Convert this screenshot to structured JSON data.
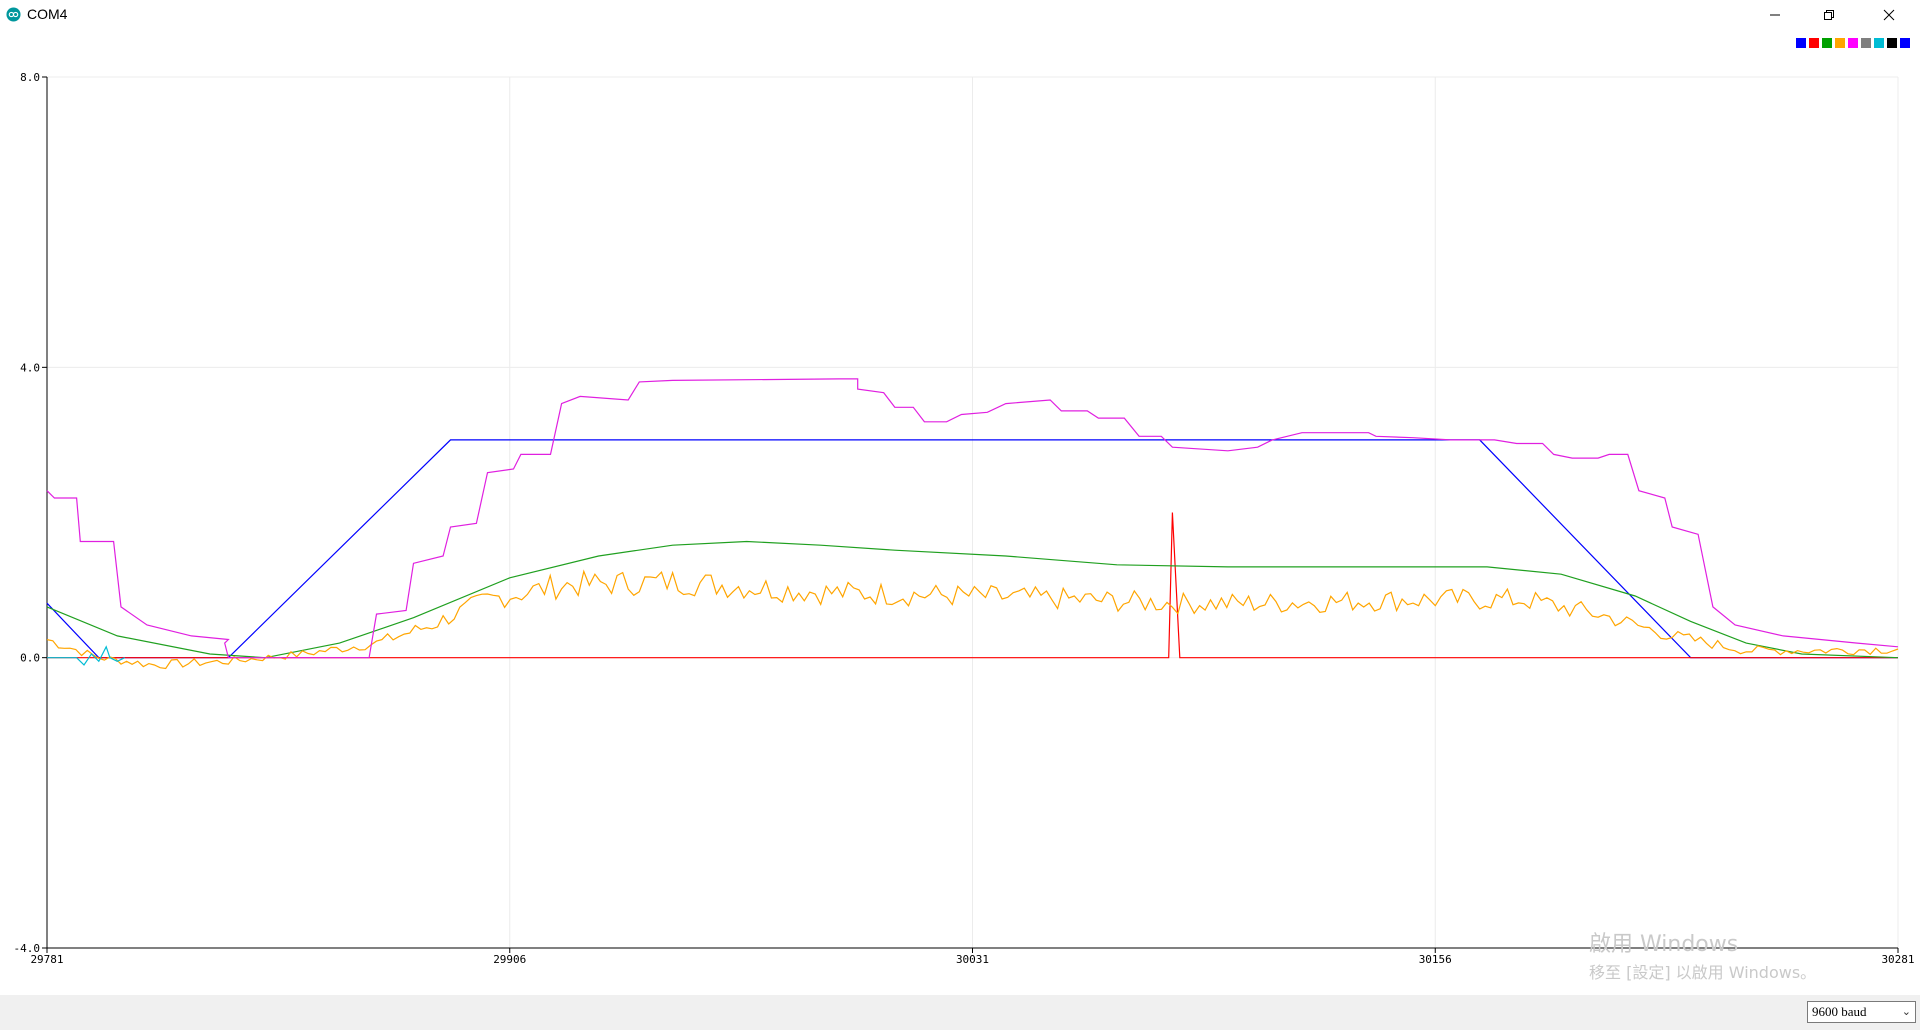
{
  "window": {
    "title": "COM4",
    "icon": "arduino-infinity-icon"
  },
  "controls": {
    "minimize": "minimize-icon",
    "restore": "restore-icon",
    "close": "close-icon"
  },
  "legend_colors": [
    "#0000ff",
    "#ff0000",
    "#00a000",
    "#ffa500",
    "#ff00ff",
    "#7f7f7f",
    "#00bcd4",
    "#000000",
    "#0000ff"
  ],
  "status": {
    "baud_selected": "9600 baud"
  },
  "watermark": {
    "line1": "啟用 Windows",
    "line2": "移至 [設定] 以啟用 Windows。"
  },
  "chart_data": {
    "type": "line",
    "xlim": [
      29781,
      30281
    ],
    "ylim": [
      -4.0,
      8.0
    ],
    "x_ticks": [
      "29781",
      "29906",
      "30031",
      "30156",
      "30281"
    ],
    "y_ticks": [
      "8.0",
      "4.0",
      "0.0",
      "-4.0"
    ],
    "grid": true,
    "legend_position": "top-right",
    "series": [
      {
        "color": "#0000ff",
        "points": [
          [
            29781,
            0.75
          ],
          [
            29795,
            0.0
          ],
          [
            29830,
            0.0
          ],
          [
            29890,
            3.0
          ],
          [
            30168,
            3.0
          ],
          [
            30225,
            0.0
          ],
          [
            30281,
            0.0
          ]
        ]
      },
      {
        "color": "#ff0000",
        "points": [
          [
            29781,
            0.0
          ],
          [
            30084,
            0.0
          ],
          [
            30085,
            2.0
          ],
          [
            30087,
            0.0
          ],
          [
            30281,
            0.0
          ]
        ]
      },
      {
        "color": "#20a020",
        "points": [
          [
            29781,
            0.7
          ],
          [
            29800,
            0.3
          ],
          [
            29825,
            0.05
          ],
          [
            29840,
            0.0
          ],
          [
            29860,
            0.2
          ],
          [
            29880,
            0.55
          ],
          [
            29906,
            1.1
          ],
          [
            29930,
            1.4
          ],
          [
            29950,
            1.55
          ],
          [
            29970,
            1.6
          ],
          [
            29990,
            1.55
          ],
          [
            30010,
            1.48
          ],
          [
            30040,
            1.4
          ],
          [
            30070,
            1.28
          ],
          [
            30100,
            1.25
          ],
          [
            30130,
            1.25
          ],
          [
            30170,
            1.25
          ],
          [
            30190,
            1.15
          ],
          [
            30210,
            0.85
          ],
          [
            30225,
            0.5
          ],
          [
            30240,
            0.2
          ],
          [
            30255,
            0.05
          ],
          [
            30281,
            0.0
          ]
        ]
      },
      {
        "color": "#ffa500",
        "noise": 0.13,
        "points": [
          [
            29781,
            0.25
          ],
          [
            29795,
            0.0
          ],
          [
            29810,
            -0.1
          ],
          [
            29830,
            -0.05
          ],
          [
            29850,
            0.05
          ],
          [
            29870,
            0.2
          ],
          [
            29885,
            0.45
          ],
          [
            29900,
            0.8
          ],
          [
            29920,
            1.0
          ],
          [
            29950,
            1.05
          ],
          [
            29990,
            0.9
          ],
          [
            30030,
            0.85
          ],
          [
            30060,
            0.8
          ],
          [
            30085,
            0.75
          ],
          [
            30110,
            0.75
          ],
          [
            30150,
            0.8
          ],
          [
            30180,
            0.8
          ],
          [
            30200,
            0.6
          ],
          [
            30220,
            0.3
          ],
          [
            30240,
            0.1
          ],
          [
            30260,
            0.1
          ],
          [
            30281,
            0.12
          ]
        ]
      },
      {
        "color": "#e020e0",
        "points": [
          [
            29781,
            2.3
          ],
          [
            29783,
            2.2
          ],
          [
            29789,
            2.2
          ],
          [
            29790,
            1.6
          ],
          [
            29799,
            1.6
          ],
          [
            29801,
            0.7
          ],
          [
            29808,
            0.45
          ],
          [
            29820,
            0.3
          ],
          [
            29830,
            0.25
          ],
          [
            29829,
            0.2
          ],
          [
            29830,
            0.0
          ],
          [
            29868,
            0.0
          ],
          [
            29870,
            0.6
          ],
          [
            29878,
            0.65
          ],
          [
            29880,
            1.3
          ],
          [
            29888,
            1.4
          ],
          [
            29890,
            1.8
          ],
          [
            29897,
            1.85
          ],
          [
            29900,
            2.55
          ],
          [
            29907,
            2.6
          ],
          [
            29909,
            2.8
          ],
          [
            29917,
            2.8
          ],
          [
            29920,
            3.5
          ],
          [
            29925,
            3.6
          ],
          [
            29938,
            3.55
          ],
          [
            29941,
            3.8
          ],
          [
            29950,
            3.82
          ],
          [
            29995,
            3.84
          ],
          [
            30000,
            3.84
          ],
          [
            30000,
            3.7
          ],
          [
            30007,
            3.65
          ],
          [
            30010,
            3.45
          ],
          [
            30015,
            3.45
          ],
          [
            30018,
            3.25
          ],
          [
            30024,
            3.25
          ],
          [
            30028,
            3.35
          ],
          [
            30035,
            3.38
          ],
          [
            30040,
            3.5
          ],
          [
            30052,
            3.55
          ],
          [
            30055,
            3.4
          ],
          [
            30062,
            3.4
          ],
          [
            30065,
            3.3
          ],
          [
            30072,
            3.3
          ],
          [
            30076,
            3.05
          ],
          [
            30082,
            3.05
          ],
          [
            30085,
            2.9
          ],
          [
            30100,
            2.85
          ],
          [
            30108,
            2.9
          ],
          [
            30112,
            3.0
          ],
          [
            30120,
            3.1
          ],
          [
            30138,
            3.1
          ],
          [
            30140,
            3.05
          ],
          [
            30150,
            3.03
          ],
          [
            30160,
            3.0
          ],
          [
            30172,
            3.0
          ],
          [
            30178,
            2.95
          ],
          [
            30185,
            2.95
          ],
          [
            30188,
            2.8
          ],
          [
            30193,
            2.75
          ],
          [
            30200,
            2.75
          ],
          [
            30203,
            2.8
          ],
          [
            30208,
            2.8
          ],
          [
            30211,
            2.3
          ],
          [
            30218,
            2.2
          ],
          [
            30220,
            1.8
          ],
          [
            30227,
            1.7
          ],
          [
            30231,
            0.7
          ],
          [
            30237,
            0.45
          ],
          [
            30250,
            0.3
          ],
          [
            30270,
            0.2
          ],
          [
            30281,
            0.15
          ]
        ]
      },
      {
        "color": "#00bcd4",
        "points": [
          [
            29781,
            0.0
          ],
          [
            29789,
            0.0
          ],
          [
            29791,
            -0.1
          ],
          [
            29793,
            0.05
          ],
          [
            29795,
            -0.05
          ],
          [
            29797,
            0.15
          ],
          [
            29798,
            0.0
          ],
          [
            29800,
            -0.05
          ],
          [
            29802,
            0.0
          ]
        ]
      }
    ]
  }
}
